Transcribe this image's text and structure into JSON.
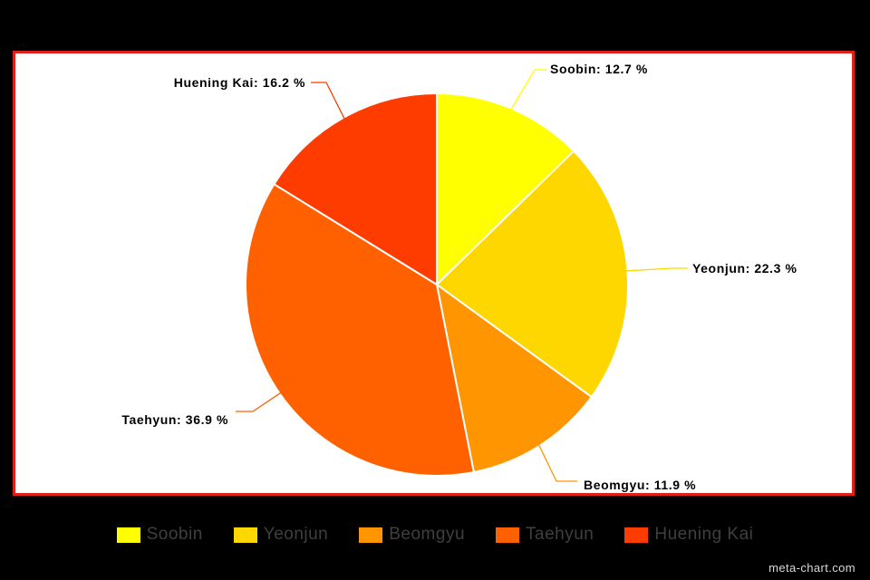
{
  "chart_data": {
    "type": "pie",
    "title": "",
    "slices": [
      {
        "name": "Soobin",
        "value": 12.7,
        "label": "Soobin: 12.7 %",
        "color": "#ffff00"
      },
      {
        "name": "Yeonjun",
        "value": 22.3,
        "label": "Yeonjun: 22.3 %",
        "color": "#ffd700"
      },
      {
        "name": "Beomgyu",
        "value": 11.9,
        "label": "Beomgyu: 11.9 %",
        "color": "#ff9500"
      },
      {
        "name": "Taehyun",
        "value": 36.9,
        "label": "Taehyun: 36.9 %",
        "color": "#ff6000"
      },
      {
        "name": "Huening Kai",
        "value": 16.2,
        "label": "Huening Kai: 16.2 %",
        "color": "#ff3c00"
      }
    ],
    "legend_position": "bottom"
  },
  "legend": {
    "items": [
      "Soobin",
      "Yeonjun",
      "Beomgyu",
      "Taehyun",
      "Huening Kai"
    ]
  },
  "watermark": "meta-chart.com",
  "colors": {
    "background": "#000000",
    "frame_border": "#e0201b",
    "plot_background": "#ffffff"
  }
}
